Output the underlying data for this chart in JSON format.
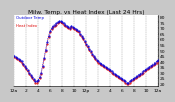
{
  "title": "Milw. Temp. vs Heat Index (Last 24 Hrs)",
  "background_color": "#c8c8c8",
  "plot_bg": "#ffffff",
  "grid_color": "#999999",
  "y_ticks": [
    20,
    25,
    30,
    35,
    40,
    45,
    50,
    55,
    60,
    65,
    70,
    75,
    80
  ],
  "ylim": [
    18,
    82
  ],
  "xlim": [
    0,
    96
  ],
  "temp_color": "#0000dd",
  "heat_color": "#dd0000",
  "cross_color": "#000000",
  "title_fontsize": 4.2,
  "tick_fontsize": 3.2,
  "line_width": 0.6,
  "marker_size": 1.0,
  "temp": [
    45,
    44,
    43,
    42,
    41,
    40,
    38,
    36,
    34,
    32,
    30,
    28,
    26,
    24,
    22,
    22,
    23,
    26,
    30,
    36,
    43,
    50,
    57,
    63,
    67,
    70,
    72,
    73,
    74,
    75,
    76,
    76,
    75,
    74,
    73,
    72,
    71,
    70,
    72,
    71,
    70,
    69,
    68,
    67,
    65,
    63,
    61,
    58,
    56,
    54,
    51,
    49,
    47,
    45,
    43,
    41,
    40,
    39,
    38,
    37,
    36,
    35,
    34,
    33,
    32,
    31,
    30,
    29,
    28,
    27,
    26,
    25,
    24,
    23,
    22,
    21,
    21,
    22,
    23,
    24,
    25,
    26,
    27,
    28,
    29,
    30,
    31,
    32,
    33,
    34,
    35,
    36,
    37,
    38,
    39,
    40,
    41
  ],
  "heat": [
    44,
    43,
    42,
    41,
    40,
    39,
    37,
    35,
    33,
    31,
    29,
    27,
    25,
    23,
    21,
    21,
    22,
    25,
    29,
    35,
    42,
    49,
    56,
    62,
    66,
    69,
    71,
    72,
    73,
    74,
    75,
    75,
    74,
    73,
    72,
    71,
    70,
    69,
    71,
    70,
    69,
    68,
    67,
    66,
    64,
    62,
    60,
    57,
    55,
    53,
    50,
    48,
    46,
    44,
    42,
    40,
    39,
    38,
    37,
    36,
    35,
    34,
    33,
    32,
    31,
    30,
    29,
    28,
    27,
    26,
    25,
    24,
    23,
    22,
    21,
    20,
    20,
    21,
    22,
    23,
    24,
    25,
    26,
    27,
    28,
    29,
    30,
    31,
    32,
    33,
    34,
    35,
    36,
    37,
    38,
    39,
    40
  ],
  "x_tick_labels": [
    "12a",
    "",
    "2",
    "",
    "4",
    "",
    "6",
    "",
    "8",
    "",
    "10",
    "",
    "12p",
    "",
    "2",
    "",
    "4",
    "",
    "6",
    "",
    "8",
    "",
    "10",
    "",
    "12a"
  ],
  "vgrid_positions": [
    0,
    8,
    16,
    24,
    32,
    40,
    48,
    56,
    64,
    72,
    80,
    88,
    96
  ]
}
